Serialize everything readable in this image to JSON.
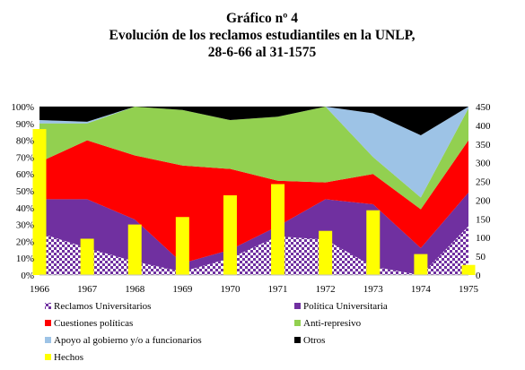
{
  "chart_data": {
    "type": "area",
    "title_lines": [
      "Gráfico nº 4",
      "Evolución de los reclamos estudiantiles en la UNLP,",
      "28-6-66 al 31-1575"
    ],
    "x": [
      "1966",
      "1967",
      "1968",
      "1969",
      "1970",
      "1971",
      "1972",
      "1973",
      "1974",
      "1975"
    ],
    "y_left_ticks": [
      "0%",
      "10%",
      "20%",
      "30%",
      "40%",
      "50%",
      "60%",
      "70%",
      "80%",
      "90%",
      "100%"
    ],
    "y_right_ticks": [
      "0",
      "50",
      "100",
      "150",
      "200",
      "250",
      "300",
      "350",
      "400",
      "450"
    ],
    "ylim_left": [
      0,
      100
    ],
    "ylim_right": [
      0,
      450
    ],
    "stacked_series": [
      {
        "name": "Reclamos Universitarios",
        "color": "#7030A0",
        "pattern": "checker",
        "values": [
          25,
          16,
          8,
          2,
          10,
          23,
          21,
          5,
          0,
          29
        ]
      },
      {
        "name": "Política Universitaria",
        "color": "#7030A0",
        "values": [
          20,
          29,
          25,
          5,
          5,
          6,
          24,
          37,
          16,
          20
        ]
      },
      {
        "name": "Cuestiones políticas",
        "color": "#FF0000",
        "values": [
          22,
          35,
          38,
          58,
          48,
          27,
          10,
          18,
          23,
          31
        ]
      },
      {
        "name": "Anti-represivo",
        "color": "#92D050",
        "values": [
          23,
          10,
          29,
          33,
          29,
          38,
          45,
          10,
          7,
          19
        ]
      },
      {
        "name": "Apoyo al gobierno y/o a funcionarios",
        "color": "#9DC3E6",
        "values": [
          2,
          1,
          0,
          0,
          0,
          0,
          0,
          26,
          37,
          1
        ]
      },
      {
        "name": "Otros",
        "color": "#000000",
        "values": [
          8,
          9,
          0,
          2,
          8,
          6,
          0,
          4,
          17,
          0
        ]
      }
    ],
    "bar_series": {
      "name": "Hechos",
      "color": "#FFFF00",
      "values": [
        390,
        97,
        135,
        155,
        213,
        243,
        118,
        173,
        56,
        27
      ]
    },
    "legend": [
      {
        "label": "Reclamos Universitarios",
        "color": "#7030A0",
        "pattern": "checker"
      },
      {
        "label": "Política Universitaria",
        "color": "#7030A0"
      },
      {
        "label": "Cuestiones políticas",
        "color": "#FF0000"
      },
      {
        "label": "Anti-represivo",
        "color": "#92D050"
      },
      {
        "label": "Apoyo al gobierno y/o a funcionarios",
        "color": "#9DC3E6"
      },
      {
        "label": "Otros",
        "color": "#000000"
      },
      {
        "label": "Hechos",
        "color": "#FFFF00"
      }
    ],
    "legend_placement": "bottom",
    "grid": true
  }
}
